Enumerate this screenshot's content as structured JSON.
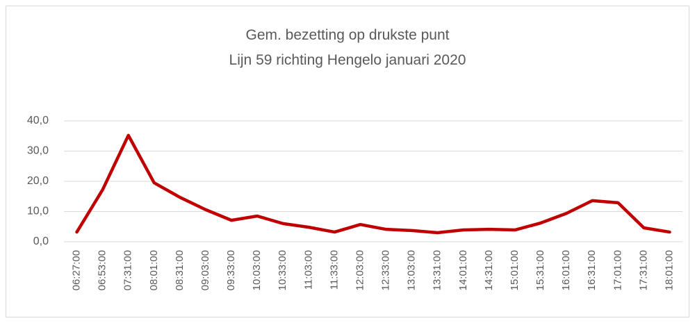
{
  "chart_data": {
    "type": "line",
    "title": [
      "Gem. bezetting op drukste punt",
      "Lijn 59 richting Hengelo januari 2020"
    ],
    "categories": [
      "06:27:00",
      "06:53:00",
      "07:31:00",
      "08:01:00",
      "08:31:00",
      "09:03:00",
      "09:33:00",
      "10:03:00",
      "10:33:00",
      "11:03:00",
      "11:33:00",
      "12:03:00",
      "12:33:00",
      "13:03:00",
      "13:31:00",
      "14:01:00",
      "14:31:00",
      "15:01:00",
      "15:31:00",
      "16:01:00",
      "16:31:00",
      "17:01:00",
      "17:31:00",
      "18:01:00"
    ],
    "values": [
      3.2,
      17.2,
      35.2,
      19.5,
      14.7,
      10.6,
      7.1,
      8.5,
      6.0,
      4.8,
      3.2,
      5.7,
      4.1,
      3.7,
      3.0,
      3.9,
      4.1,
      3.9,
      6.2,
      9.4,
      13.6,
      12.9,
      4.6,
      3.2
    ],
    "color": "#c00000",
    "ylim": [
      0,
      40
    ],
    "yticks": [
      {
        "value": 0,
        "label": "0,0"
      },
      {
        "value": 10,
        "label": "10,0"
      },
      {
        "value": 20,
        "label": "20,0"
      },
      {
        "value": 30,
        "label": "30,0"
      },
      {
        "value": 40,
        "label": "40,0"
      }
    ],
    "grid": true
  }
}
